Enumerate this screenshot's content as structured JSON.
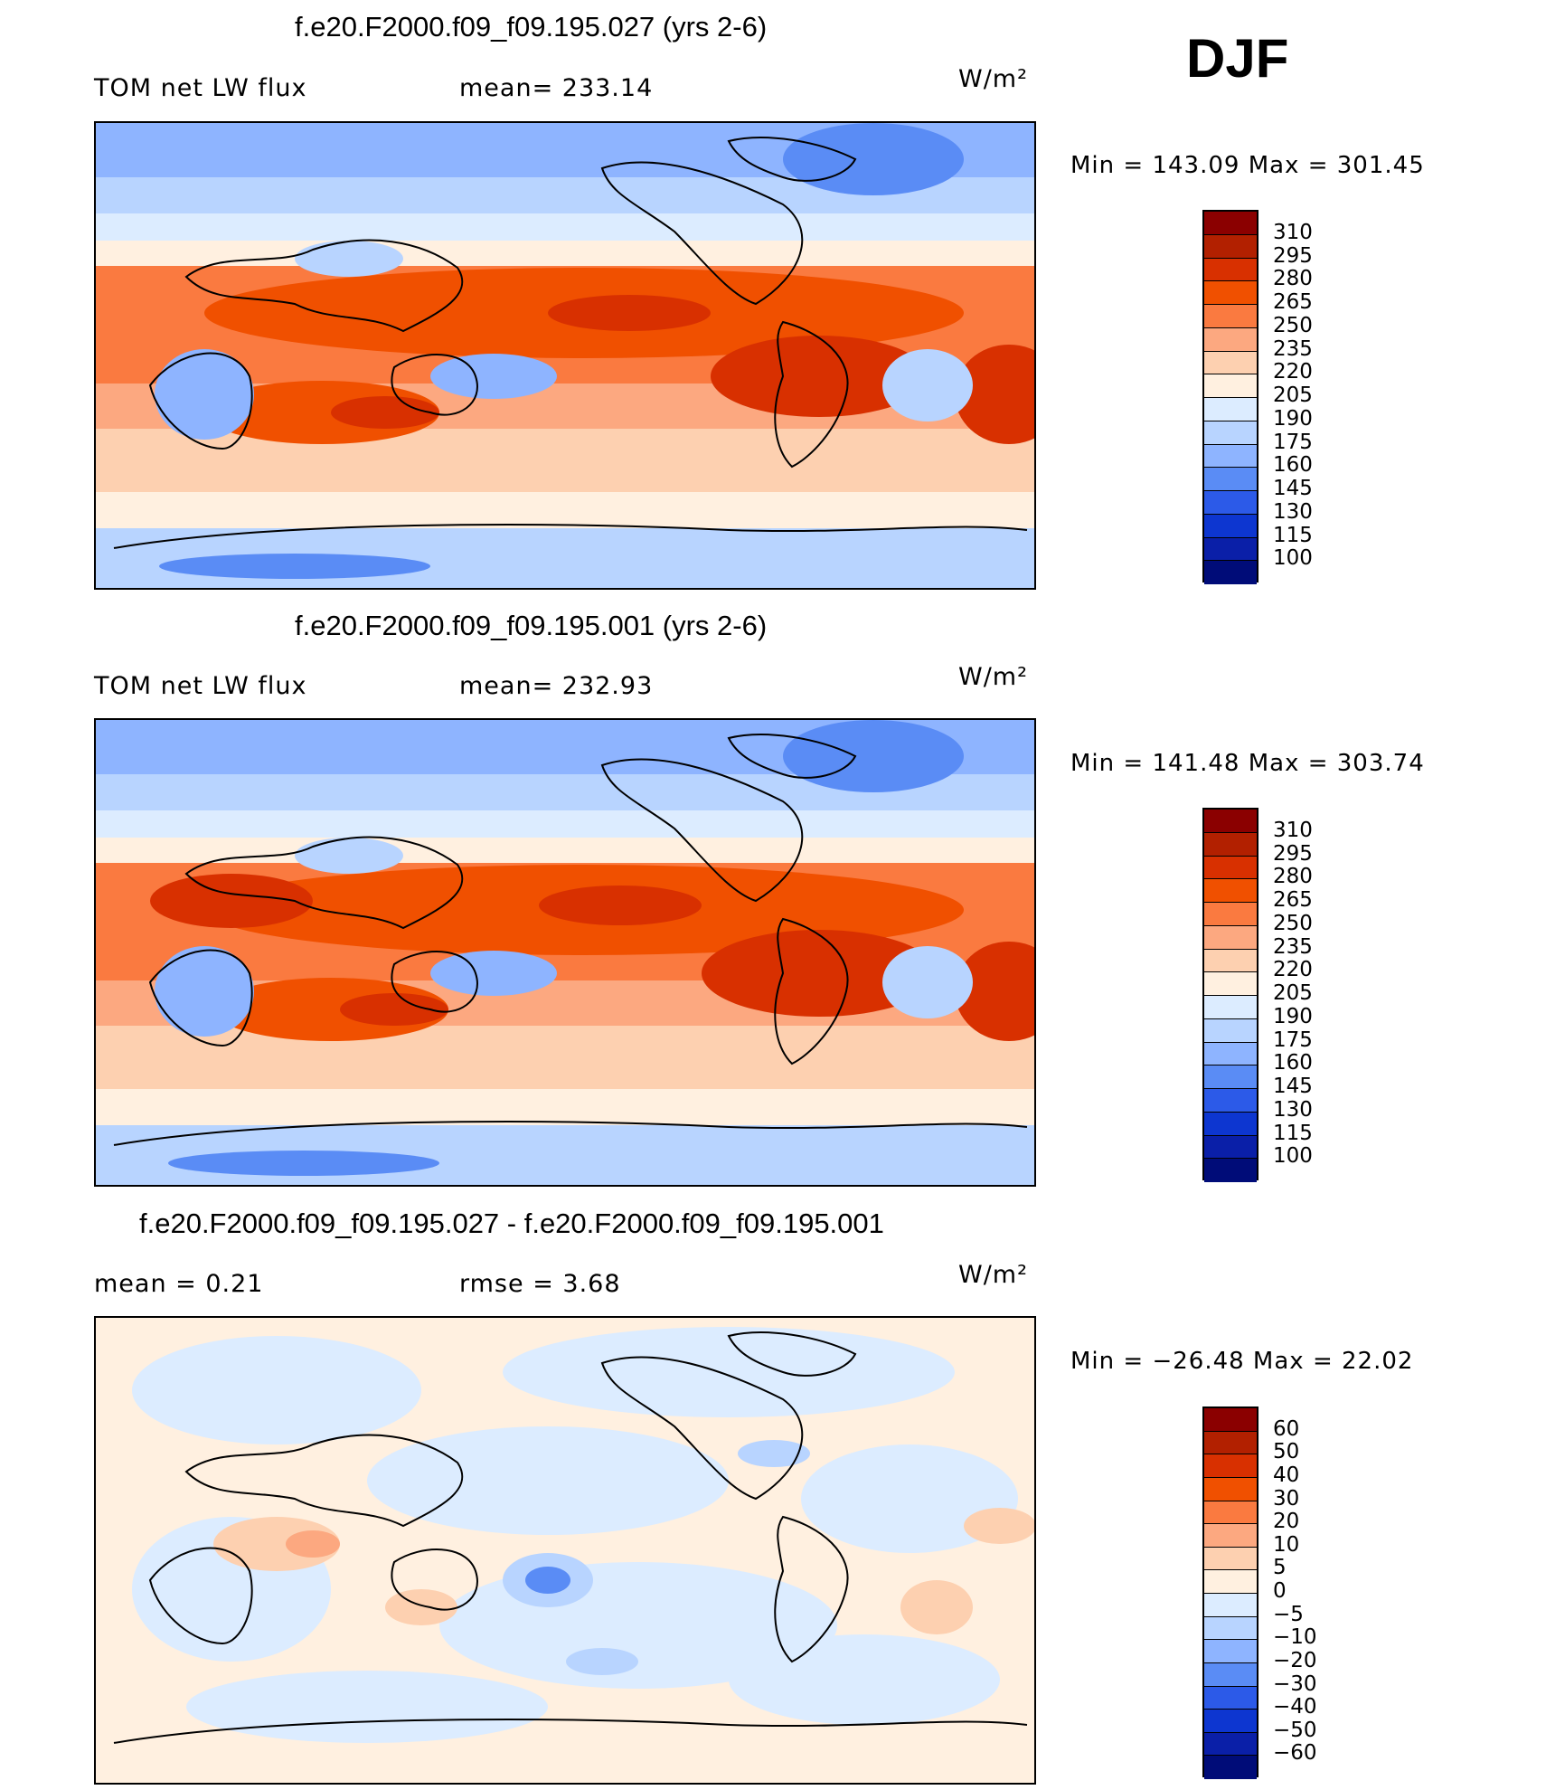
{
  "djf_label": "DJF",
  "panels": [
    {
      "title": "f.e20.F2000.f09_f09.195.027 (yrs 2-6)",
      "left_label": "TOM  net  LW  flux",
      "mid_label": "mean=  233.14",
      "units": "W/m²",
      "minmax": "Min  =  143.09  Max  =  301.45",
      "levels": [
        "310",
        "295",
        "280",
        "265",
        "250",
        "235",
        "220",
        "205",
        "190",
        "175",
        "160",
        "145",
        "130",
        "115",
        "100"
      ],
      "colors": [
        "#8b0000",
        "#b22000",
        "#d83000",
        "#f05000",
        "#fa7a40",
        "#fca880",
        "#fdd0b0",
        "#fff0e0",
        "#dcecff",
        "#b8d4ff",
        "#8eb4ff",
        "#5a8cf5",
        "#2c5ae8",
        "#0d36d0",
        "#0a1fa8",
        "#000c78"
      ]
    },
    {
      "title": "f.e20.F2000.f09_f09.195.001 (yrs 2-6)",
      "left_label": "TOM  net  LW  flux",
      "mid_label": "mean=  232.93",
      "units": "W/m²",
      "minmax": "Min  =  141.48  Max  =  303.74",
      "levels": [
        "310",
        "295",
        "280",
        "265",
        "250",
        "235",
        "220",
        "205",
        "190",
        "175",
        "160",
        "145",
        "130",
        "115",
        "100"
      ],
      "colors": [
        "#8b0000",
        "#b22000",
        "#d83000",
        "#f05000",
        "#fa7a40",
        "#fca880",
        "#fdd0b0",
        "#fff0e0",
        "#dcecff",
        "#b8d4ff",
        "#8eb4ff",
        "#5a8cf5",
        "#2c5ae8",
        "#0d36d0",
        "#0a1fa8",
        "#000c78"
      ]
    },
    {
      "title": "f.e20.F2000.f09_f09.195.027 - f.e20.F2000.f09_f09.195.001",
      "left_label": "mean  =      0.21",
      "mid_label": "rmse  =      3.68",
      "units": "W/m²",
      "minmax": "Min  =  −26.48  Max  =    22.02",
      "levels": [
        "60",
        "50",
        "40",
        "30",
        "20",
        "10",
        "5",
        "0",
        "−5",
        "−10",
        "−20",
        "−30",
        "−40",
        "−50",
        "−60"
      ],
      "colors": [
        "#8b0000",
        "#b22000",
        "#d83000",
        "#f05000",
        "#fa7a40",
        "#fca880",
        "#fdd0b0",
        "#fff0e0",
        "#dcecff",
        "#b8d4ff",
        "#8eb4ff",
        "#5a8cf5",
        "#2c5ae8",
        "#0d36d0",
        "#0a1fa8",
        "#000c78"
      ]
    }
  ]
}
